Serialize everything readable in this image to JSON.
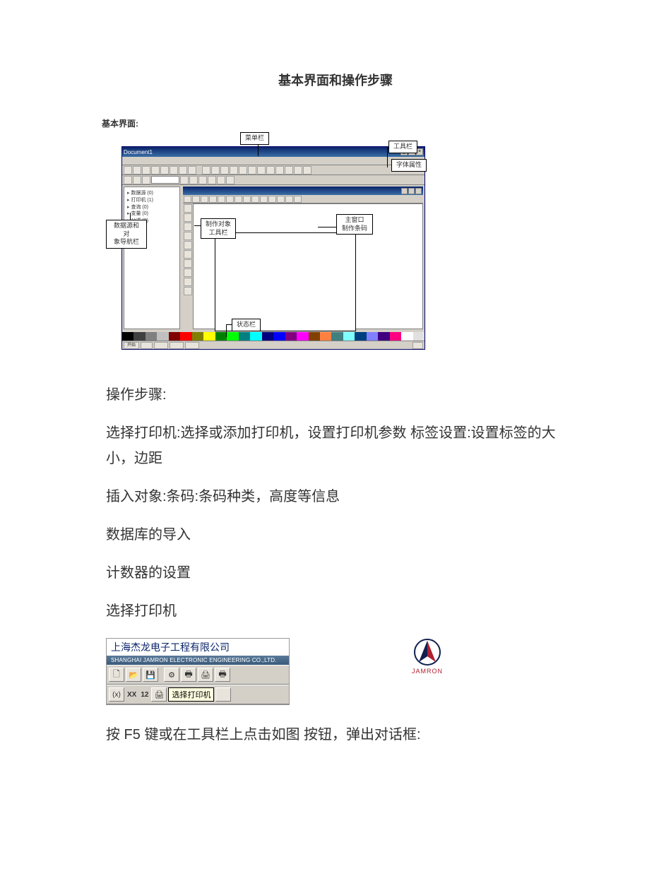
{
  "doc": {
    "title": "基本界面和操作步骤",
    "section_label": "基本界面:"
  },
  "screenshot": {
    "title": "Document1",
    "callouts": {
      "menubar": "菜单栏",
      "toolbar": "工具栏",
      "font_attr": "字体属性",
      "object_toolbar_l1": "制作对象",
      "object_toolbar_l2": "工具栏",
      "main_window_l1": "主窗口",
      "main_window_l2": "制作条码",
      "nav_l1": "数据源和对",
      "nav_l2": "象导航栏",
      "statusbar": "状态栏"
    },
    "tree_items": [
      "数据源 (0)",
      "打印机 (1)",
      "查询 (0)",
      "变量 (0)",
      "公式 (0)"
    ],
    "palette_colors": [
      "#000000",
      "#404040",
      "#808080",
      "#c0c0c0",
      "#800000",
      "#ff0000",
      "#808000",
      "#ffff00",
      "#008000",
      "#00ff00",
      "#008080",
      "#00ffff",
      "#000080",
      "#0000ff",
      "#800080",
      "#ff00ff",
      "#804000",
      "#ff8040",
      "#408080",
      "#80ffff",
      "#004080",
      "#8080ff",
      "#400080",
      "#ff0080",
      "#ffffff",
      "#e0e0e0"
    ]
  },
  "body": {
    "steps_heading": "操作步骤:",
    "step1": "选择打印机:选择或添加打印机，设置打印机参数 标签设置:设置标签的大小，边距",
    "step2": "插入对象:条码:条码种类，高度等信息",
    "step3": "数据库的导入",
    "step4": "计数器的设置",
    "step5": "选择打印机",
    "final": "按 F5 键或在工具栏上点击如图 按钮，弹出对话框:"
  },
  "toolbar_shot": {
    "company_cn": "上海杰龙电子工程有限公司",
    "company_en": "SHANGHAI JAMRON ELECTRONIC ENGINEERING CO.,LTD.",
    "xx": "XX",
    "num": "12",
    "tooltip": "选择打印机",
    "brand": "JAMRON"
  },
  "style": {
    "accent_blue": "#0a246a",
    "window_bg": "#d4d0c8",
    "brand_red": "#b02030",
    "body_fontsize": 20
  }
}
